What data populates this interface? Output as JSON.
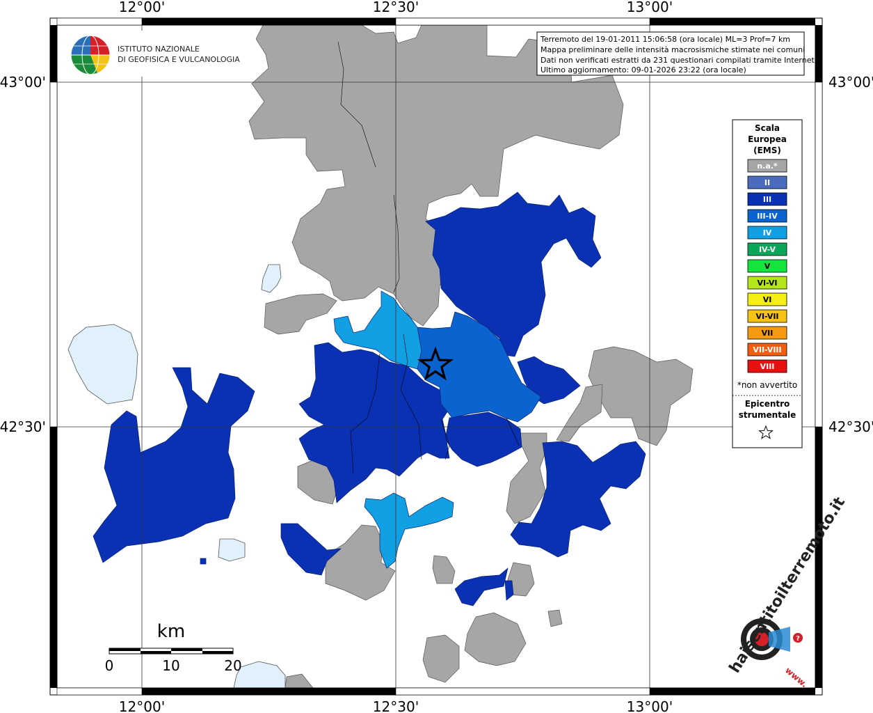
{
  "map": {
    "lon_labels": [
      "12°00'",
      "12°30'",
      "13°00'"
    ],
    "lat_labels": [
      "43°00'",
      "42°30'"
    ]
  },
  "info": {
    "lines": [
      "Terremoto del 19-01-2011 15:06:58 (ora locale) ML=3 Prof=7 km",
      "Mappa preliminare delle intensità macrosismiche stimate nei comuni",
      "Dati non verificati estratti da 231 questionari compilati tramite Internet.",
      "Ultimo aggiornamento: 09-01-2026 23:22 (ora locale)"
    ]
  },
  "logo": {
    "line1": "ISTITUTO NAZIONALE",
    "line2": "DI GEOFISICA E VULCANOLOGIA"
  },
  "legend": {
    "title_lines": [
      "Scala",
      "Europea",
      "(EMS)"
    ],
    "items": [
      {
        "label": "n.a.*",
        "color": "#a6a6a6"
      },
      {
        "label": "II",
        "color": "#4b6bbd"
      },
      {
        "label": "III",
        "color": "#0a31b3"
      },
      {
        "label": "III-IV",
        "color": "#0b63cf"
      },
      {
        "label": "IV",
        "color": "#12a0e4"
      },
      {
        "label": "IV-V",
        "color": "#0aa65a"
      },
      {
        "label": "V",
        "color": "#12e63c"
      },
      {
        "label": "VI-VI",
        "color": "#b5e61a"
      },
      {
        "label": "VI",
        "color": "#f7ee13"
      },
      {
        "label": "VI-VII",
        "color": "#f7c213"
      },
      {
        "label": "VII",
        "color": "#f79a13"
      },
      {
        "label": "VII-VIII",
        "color": "#f25e10"
      },
      {
        "label": "VIII",
        "color": "#e81010"
      }
    ],
    "note": "*non avvertito",
    "epicenter_lines": [
      "Epicentro",
      "strumentale"
    ]
  },
  "scalebar": {
    "unit": "km",
    "ticks": [
      "0",
      "10",
      "20"
    ]
  },
  "hst": {
    "brand": "haisentitoilterremoto.it",
    "www": "www."
  }
}
